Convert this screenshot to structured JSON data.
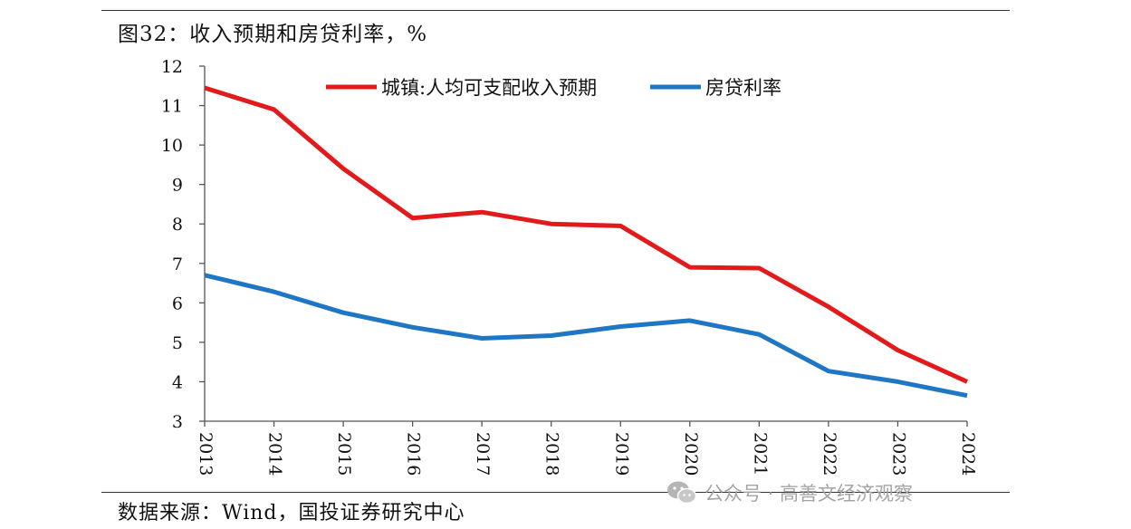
{
  "title": "图32：收入预期和房贷利率，%",
  "source": "数据来源：Wind，国投证券研究中心",
  "watermark": {
    "text": "公众号 · 高善文经济观察",
    "icon": "wechat-icon"
  },
  "chart_data": {
    "type": "line",
    "title": "图32：收入预期和房贷利率，%",
    "x": [
      "2013",
      "2014",
      "2015",
      "2016",
      "2017",
      "2018",
      "2019",
      "2020",
      "2021",
      "2022",
      "2023",
      "2024"
    ],
    "ylim": [
      3,
      12
    ],
    "yticks": [
      3,
      4,
      5,
      6,
      7,
      8,
      9,
      10,
      11,
      12
    ],
    "grid": false,
    "legend_position": "top",
    "series": [
      {
        "name": "城镇:人均可支配收入预期",
        "color": "#e31a1c",
        "values": [
          11.45,
          10.9,
          9.4,
          8.15,
          8.3,
          8.0,
          7.95,
          6.9,
          6.88,
          5.9,
          4.8,
          4.0
        ]
      },
      {
        "name": "房贷利率",
        "color": "#1f77c4",
        "values": [
          6.7,
          6.28,
          5.75,
          5.38,
          5.1,
          5.17,
          5.4,
          5.55,
          5.2,
          4.27,
          4.0,
          3.65
        ]
      }
    ]
  }
}
